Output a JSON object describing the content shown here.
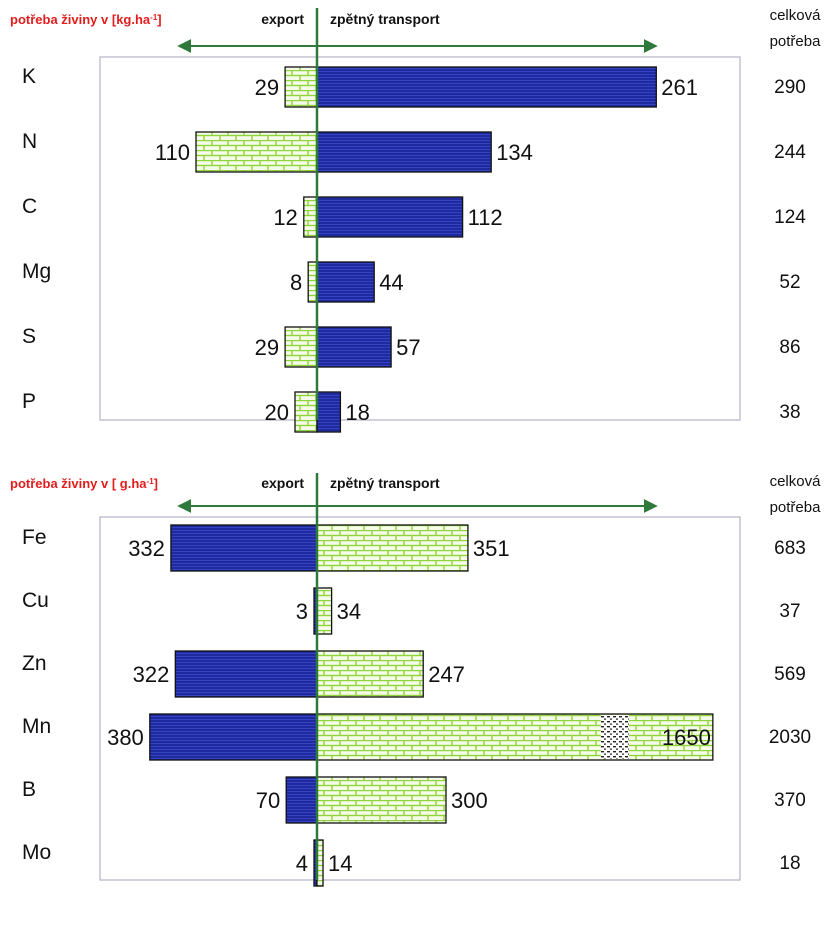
{
  "colors": {
    "accent_red": "#e11d1d",
    "arrow_green": "#2f7a3a",
    "blue_bar": "#1f2a9e",
    "green_brick": "#8fd43a",
    "frame": "#b9b0c7"
  },
  "chart_data": [
    {
      "type": "bar",
      "orientation": "horizontal-diverging",
      "unit_label_prefix": "potřeba živiny v [kg.ha",
      "unit_label_sup": "-1",
      "unit_label_suffix": "]",
      "left_heading": "export",
      "right_heading": "zpětný transport",
      "total_heading_line1": "celková",
      "total_heading_line2": "potřeba",
      "categories": [
        "K",
        "N",
        "C",
        "Mg",
        "S",
        "P"
      ],
      "series": [
        {
          "values": [
            29,
            110,
            12,
            8,
            29,
            20
          ],
          "direction": "left",
          "pattern": "green-brick"
        },
        {
          "values": [
            261,
            134,
            112,
            44,
            57,
            18
          ],
          "direction": "right",
          "pattern": "blue-stripe"
        }
      ],
      "totals": [
        290,
        244,
        124,
        52,
        86,
        38
      ],
      "xlim": [
        -120,
        300
      ]
    },
    {
      "type": "bar",
      "orientation": "horizontal-diverging",
      "unit_label_prefix": "potřeba živiny v [  g.ha",
      "unit_label_sup": "-1",
      "unit_label_suffix": "]",
      "left_heading": "export",
      "right_heading": "zpětný transport",
      "total_heading_line1": "celková",
      "total_heading_line2": "potřeba",
      "categories": [
        "Fe",
        "Cu",
        "Zn",
        "Mn",
        "B",
        "Mo"
      ],
      "series": [
        {
          "values": [
            332,
            3,
            322,
            380,
            70,
            4
          ],
          "direction": "left",
          "pattern": "blue-stripe"
        },
        {
          "values": [
            351,
            34,
            247,
            1650,
            300,
            14
          ],
          "direction": "right",
          "pattern": "green-brick"
        }
      ],
      "totals": [
        683,
        37,
        569,
        2030,
        370,
        18
      ]
    }
  ]
}
